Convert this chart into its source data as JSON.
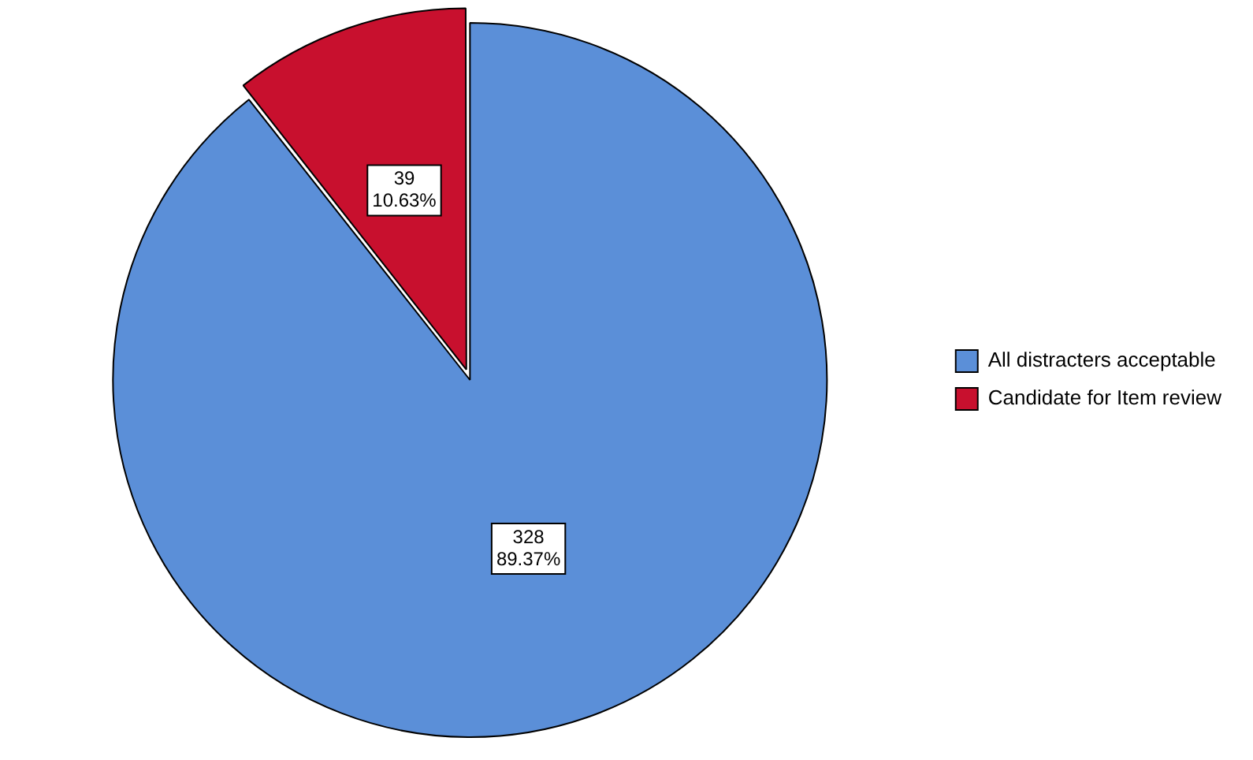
{
  "chart_data": {
    "type": "pie",
    "categories": [
      "All distracters acceptable",
      "Candidate for Item review"
    ],
    "values": [
      328,
      39
    ],
    "colors": [
      "#5b8fd8",
      "#c8102e"
    ],
    "value_labels": [
      "328\n89.37%",
      "39\n10.63%"
    ],
    "legend": "right"
  }
}
